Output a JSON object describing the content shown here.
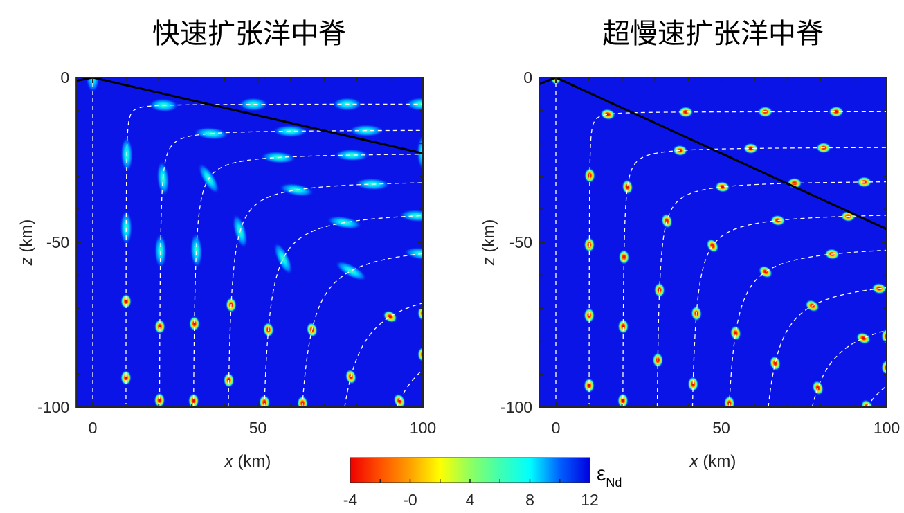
{
  "chart_data": [
    {
      "type": "heatmap",
      "title": "快速扩张洋中脊",
      "xlabel_var": "x",
      "xlabel_unit": " (km)",
      "ylabel_var": "z",
      "ylabel_unit": " (km)",
      "xlim": [
        -5,
        100
      ],
      "ylim": [
        -100,
        0
      ],
      "xticks": [
        "0",
        "50",
        "100"
      ],
      "yticks": [
        "0",
        "-50",
        "-100"
      ],
      "streamline_starts_x": [
        0,
        10,
        20,
        30,
        40,
        50,
        60,
        70,
        80,
        90
      ],
      "streamline_depths": [
        0,
        -8,
        -15.8,
        -22.7,
        -30.7,
        -39.5,
        -49,
        -60,
        -71.5,
        -84
      ],
      "boundary_line": [
        [
          -5,
          -1
        ],
        [
          0,
          0
        ],
        [
          100,
          -23
        ]
      ]
    },
    {
      "type": "heatmap",
      "title": "超慢速扩张洋中脊",
      "xlabel_var": "x",
      "xlabel_unit": " (km)",
      "ylabel_var": "z",
      "ylabel_unit": " (km)",
      "xlim": [
        -5,
        100
      ],
      "ylim": [
        -100,
        0
      ],
      "xticks": [
        "0",
        "50",
        "100"
      ],
      "yticks": [
        "0",
        "-50",
        "-100"
      ],
      "streamline_starts_x": [
        0,
        10,
        20,
        30,
        40,
        50,
        60,
        70,
        80,
        90
      ],
      "streamline_depths": [
        0,
        -10.3,
        -21,
        -31,
        -40.5,
        -50,
        -59.5,
        -69,
        -78.5,
        -88
      ],
      "boundary_line": [
        [
          -5,
          -2
        ],
        [
          0,
          0
        ],
        [
          100,
          -46
        ]
      ]
    }
  ],
  "colorbar": {
    "label": "ε",
    "label_sub": "Nd",
    "range": [
      -4,
      12
    ],
    "ticks": [
      "-4",
      "-0",
      "4",
      "8",
      "12"
    ],
    "colormap": "jet"
  }
}
